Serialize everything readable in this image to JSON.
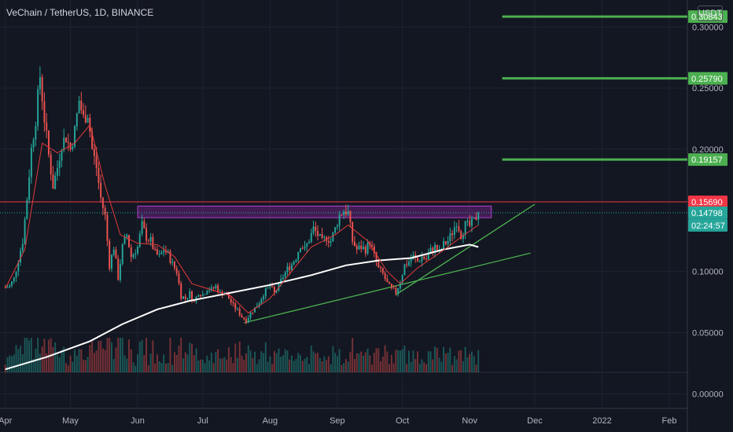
{
  "header": {
    "symbol": "VeChain / TetherUS, 1D, BINANCE",
    "currency": "USDT"
  },
  "chart_data": {
    "type": "candlestick",
    "ylim": [
      -0.012,
      0.322
    ],
    "y_ticks": [
      "0.30000",
      "0.25000",
      "0.20000",
      "0.10000",
      "0.05000",
      "0.00000"
    ],
    "y_tick_values": [
      0.3,
      0.25,
      0.2,
      0.1,
      0.05,
      0.0
    ],
    "x_ticks": [
      "Apr",
      "May",
      "Jun",
      "Jul",
      "Aug",
      "Sep",
      "Oct",
      "Nov",
      "Dec",
      "2022",
      "Feb"
    ],
    "x_tick_dates": [
      "2021-04-01",
      "2021-05-01",
      "2021-06-01",
      "2021-07-01",
      "2021-08-01",
      "2021-09-01",
      "2021-10-01",
      "2021-11-01",
      "2021-12-01",
      "2022-01-01",
      "2022-02-01"
    ],
    "price_series": [
      [
        "2021-04-01",
        0.087
      ],
      [
        "2021-04-03",
        0.088
      ],
      [
        "2021-04-05",
        0.094
      ],
      [
        "2021-04-07",
        0.11
      ],
      [
        "2021-04-09",
        0.125
      ],
      [
        "2021-04-11",
        0.16
      ],
      [
        "2021-04-13",
        0.2
      ],
      [
        "2021-04-15",
        0.225
      ],
      [
        "2021-04-17",
        0.26
      ],
      [
        "2021-04-19",
        0.225
      ],
      [
        "2021-04-21",
        0.195
      ],
      [
        "2021-04-23",
        0.17
      ],
      [
        "2021-04-25",
        0.185
      ],
      [
        "2021-04-27",
        0.205
      ],
      [
        "2021-04-29",
        0.21
      ],
      [
        "2021-05-01",
        0.2
      ],
      [
        "2021-05-03",
        0.215
      ],
      [
        "2021-05-05",
        0.24
      ],
      [
        "2021-05-07",
        0.225
      ],
      [
        "2021-05-09",
        0.23
      ],
      [
        "2021-05-11",
        0.2
      ],
      [
        "2021-05-13",
        0.185
      ],
      [
        "2021-05-15",
        0.16
      ],
      [
        "2021-05-17",
        0.145
      ],
      [
        "2021-05-19",
        0.105
      ],
      [
        "2021-05-21",
        0.12
      ],
      [
        "2021-05-23",
        0.095
      ],
      [
        "2021-05-25",
        0.12
      ],
      [
        "2021-05-27",
        0.13
      ],
      [
        "2021-05-29",
        0.112
      ],
      [
        "2021-06-01",
        0.12
      ],
      [
        "2021-06-03",
        0.138
      ],
      [
        "2021-06-05",
        0.128
      ],
      [
        "2021-06-07",
        0.125
      ],
      [
        "2021-06-09",
        0.115
      ],
      [
        "2021-06-11",
        0.112
      ],
      [
        "2021-06-13",
        0.118
      ],
      [
        "2021-06-15",
        0.114
      ],
      [
        "2021-06-17",
        0.106
      ],
      [
        "2021-06-19",
        0.1
      ],
      [
        "2021-06-21",
        0.08
      ],
      [
        "2021-06-23",
        0.078
      ],
      [
        "2021-06-25",
        0.082
      ],
      [
        "2021-06-27",
        0.075
      ],
      [
        "2021-06-29",
        0.083
      ],
      [
        "2021-07-01",
        0.081
      ],
      [
        "2021-07-03",
        0.086
      ],
      [
        "2021-07-05",
        0.085
      ],
      [
        "2021-07-07",
        0.088
      ],
      [
        "2021-07-09",
        0.082
      ],
      [
        "2021-07-11",
        0.083
      ],
      [
        "2021-07-13",
        0.078
      ],
      [
        "2021-07-15",
        0.072
      ],
      [
        "2021-07-17",
        0.068
      ],
      [
        "2021-07-19",
        0.063
      ],
      [
        "2021-07-21",
        0.06
      ],
      [
        "2021-07-23",
        0.066
      ],
      [
        "2021-07-25",
        0.07
      ],
      [
        "2021-07-27",
        0.075
      ],
      [
        "2021-07-29",
        0.082
      ],
      [
        "2021-08-01",
        0.088
      ],
      [
        "2021-08-03",
        0.082
      ],
      [
        "2021-08-05",
        0.088
      ],
      [
        "2021-08-07",
        0.096
      ],
      [
        "2021-08-09",
        0.102
      ],
      [
        "2021-08-11",
        0.106
      ],
      [
        "2021-08-13",
        0.112
      ],
      [
        "2021-08-15",
        0.122
      ],
      [
        "2021-08-17",
        0.118
      ],
      [
        "2021-08-19",
        0.126
      ],
      [
        "2021-08-21",
        0.135
      ],
      [
        "2021-08-23",
        0.13
      ],
      [
        "2021-08-25",
        0.124
      ],
      [
        "2021-08-27",
        0.128
      ],
      [
        "2021-08-29",
        0.125
      ],
      [
        "2021-08-31",
        0.135
      ],
      [
        "2021-09-02",
        0.146
      ],
      [
        "2021-09-04",
        0.15
      ],
      [
        "2021-09-06",
        0.148
      ],
      [
        "2021-09-08",
        0.125
      ],
      [
        "2021-09-10",
        0.118
      ],
      [
        "2021-09-12",
        0.12
      ],
      [
        "2021-09-14",
        0.118
      ],
      [
        "2021-09-16",
        0.124
      ],
      [
        "2021-09-18",
        0.113
      ],
      [
        "2021-09-20",
        0.102
      ],
      [
        "2021-09-22",
        0.098
      ],
      [
        "2021-09-24",
        0.09
      ],
      [
        "2021-09-26",
        0.085
      ],
      [
        "2021-09-28",
        0.083
      ],
      [
        "2021-09-30",
        0.092
      ],
      [
        "2021-10-02",
        0.105
      ],
      [
        "2021-10-04",
        0.108
      ],
      [
        "2021-10-06",
        0.112
      ],
      [
        "2021-10-08",
        0.108
      ],
      [
        "2021-10-10",
        0.112
      ],
      [
        "2021-10-12",
        0.11
      ],
      [
        "2021-10-14",
        0.117
      ],
      [
        "2021-10-16",
        0.12
      ],
      [
        "2021-10-18",
        0.115
      ],
      [
        "2021-10-20",
        0.122
      ],
      [
        "2021-10-22",
        0.125
      ],
      [
        "2021-10-24",
        0.132
      ],
      [
        "2021-10-26",
        0.141
      ],
      [
        "2021-10-28",
        0.13
      ],
      [
        "2021-10-30",
        0.138
      ],
      [
        "2021-11-01",
        0.137
      ],
      [
        "2021-11-03",
        0.141
      ],
      [
        "2021-11-05",
        0.14798
      ]
    ],
    "ema_series": [
      [
        "2021-04-01",
        0.086
      ],
      [
        "2021-04-10",
        0.118
      ],
      [
        "2021-04-18",
        0.205
      ],
      [
        "2021-04-25",
        0.197
      ],
      [
        "2021-05-03",
        0.205
      ],
      [
        "2021-05-10",
        0.22
      ],
      [
        "2021-05-17",
        0.17
      ],
      [
        "2021-05-24",
        0.13
      ],
      [
        "2021-06-01",
        0.123
      ],
      [
        "2021-06-10",
        0.122
      ],
      [
        "2021-06-18",
        0.112
      ],
      [
        "2021-06-26",
        0.09
      ],
      [
        "2021-07-05",
        0.085
      ],
      [
        "2021-07-14",
        0.08
      ],
      [
        "2021-07-22",
        0.066
      ],
      [
        "2021-08-01",
        0.078
      ],
      [
        "2021-08-10",
        0.098
      ],
      [
        "2021-08-20",
        0.12
      ],
      [
        "2021-08-31",
        0.13
      ],
      [
        "2021-09-06",
        0.138
      ],
      [
        "2021-09-15",
        0.125
      ],
      [
        "2021-09-24",
        0.1
      ],
      [
        "2021-09-30",
        0.09
      ],
      [
        "2021-10-08",
        0.103
      ],
      [
        "2021-10-18",
        0.115
      ],
      [
        "2021-10-28",
        0.128
      ],
      [
        "2021-11-05",
        0.138
      ]
    ],
    "ma200_series": [
      [
        "2021-04-01",
        0.02
      ],
      [
        "2021-04-20",
        0.03
      ],
      [
        "2021-05-10",
        0.043
      ],
      [
        "2021-05-25",
        0.057
      ],
      [
        "2021-06-10",
        0.069
      ],
      [
        "2021-06-25",
        0.076
      ],
      [
        "2021-07-15",
        0.083
      ],
      [
        "2021-08-01",
        0.089
      ],
      [
        "2021-08-20",
        0.097
      ],
      [
        "2021-09-05",
        0.105
      ],
      [
        "2021-09-20",
        0.109
      ],
      [
        "2021-10-05",
        0.111
      ],
      [
        "2021-10-20",
        0.118
      ],
      [
        "2021-11-01",
        0.122
      ],
      [
        "2021-11-05",
        0.12
      ]
    ],
    "trendlines": [
      {
        "from": [
          "2021-07-20",
          0.058
        ],
        "to": [
          "2021-11-29",
          0.115
        ]
      },
      {
        "from": [
          "2021-09-28",
          0.081
        ],
        "to": [
          "2021-12-01",
          0.155
        ]
      }
    ],
    "resistance_zone": {
      "from": "2021-06-01",
      "to": "2021-11-11",
      "low": 0.144,
      "high": 0.1535
    },
    "horizontal_levels": [
      {
        "value": 0.30843,
        "label": "0.30843",
        "color": "#4caf50",
        "from": "2021-11-16"
      },
      {
        "value": 0.2579,
        "label": "0.25790",
        "color": "#4caf50",
        "from": "2021-11-16"
      },
      {
        "value": 0.19157,
        "label": "0.19157",
        "color": "#4caf50",
        "from": "2021-11-16"
      },
      {
        "value": 0.1569,
        "label": "0.15690",
        "color": "#f23645",
        "from": "2021-03-25"
      }
    ],
    "last_price": {
      "value": 0.14798,
      "label": "0.14798",
      "countdown": "02:24:57",
      "color": "#26a69a"
    },
    "colors": {
      "up": "#26a69a",
      "down": "#ef5350",
      "ema": "#e23a3a",
      "ma200": "#ffffff",
      "trend": "#4caf50",
      "zone": "#9c27b0"
    }
  }
}
